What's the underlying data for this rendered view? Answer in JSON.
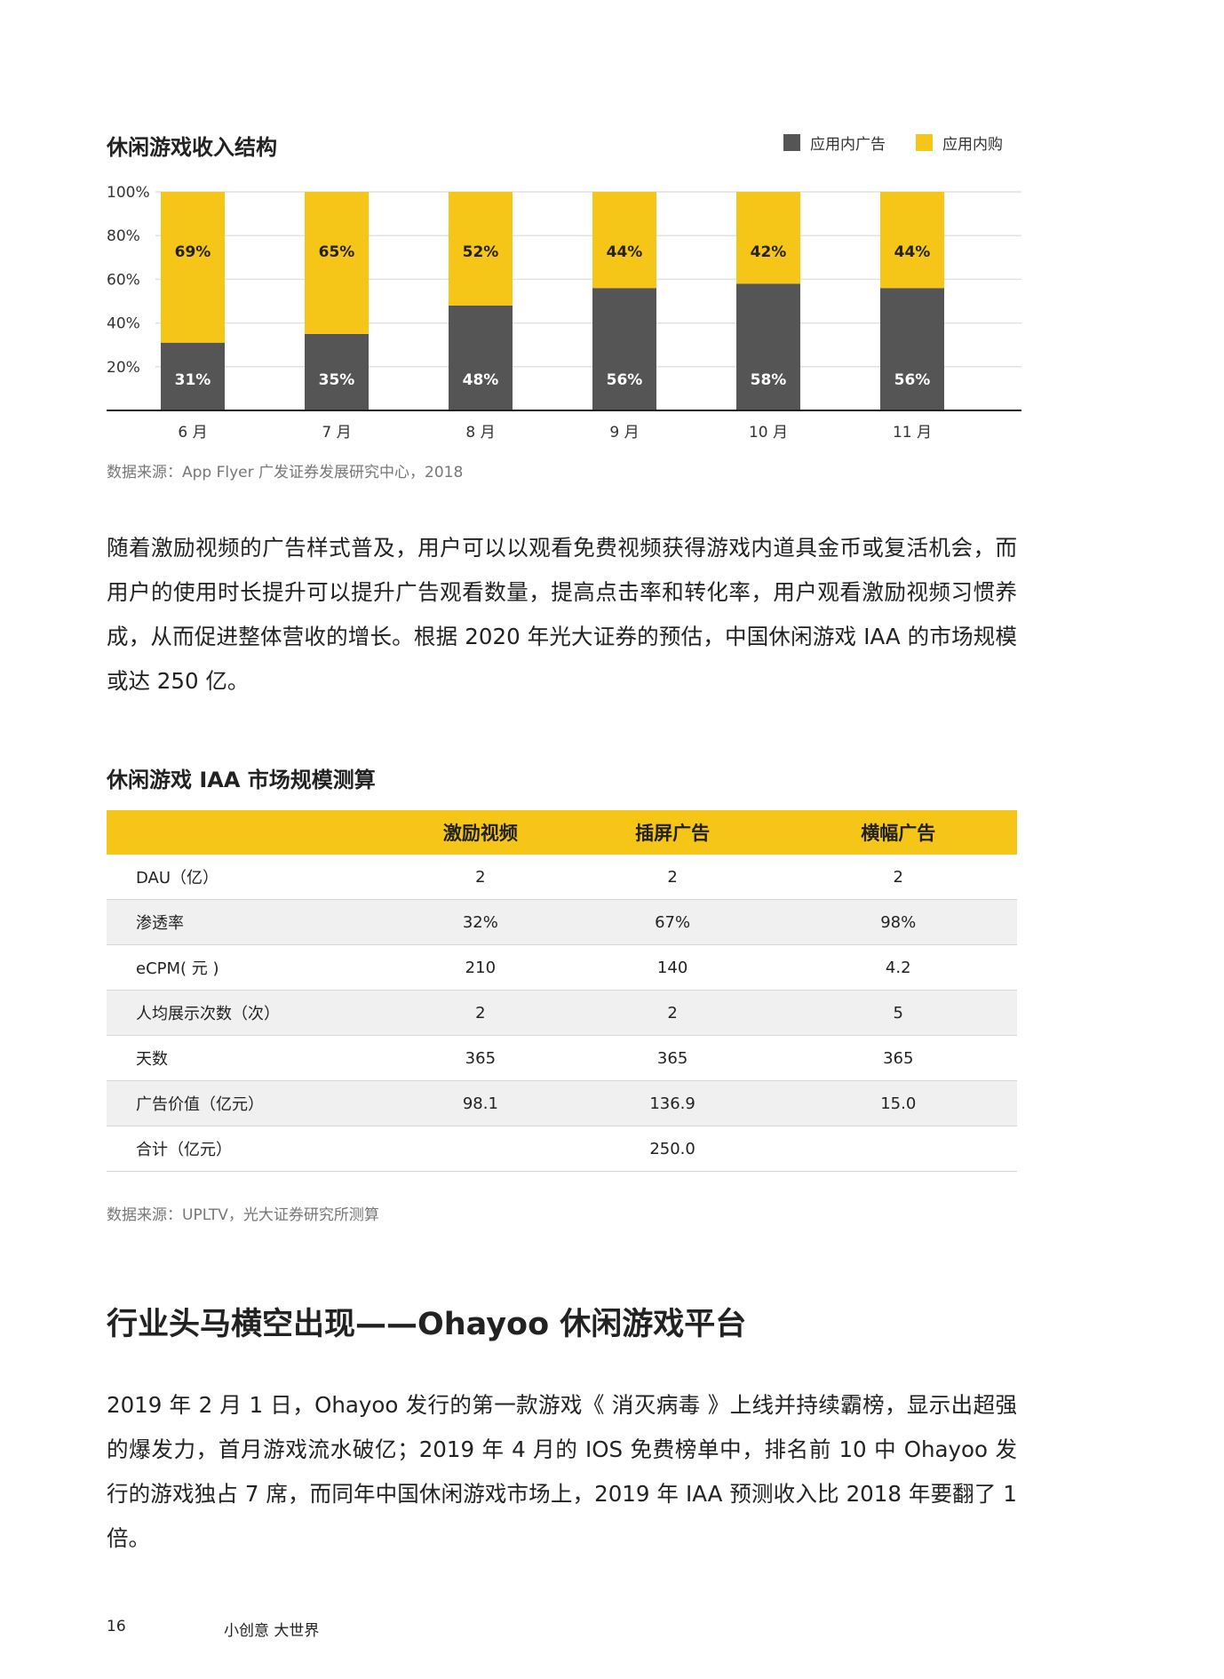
{
  "chart_section": {
    "title": "休闲游戏收入结构",
    "source": "数据来源：App Flyer 广发证券发展研究中心，2018"
  },
  "chart_data": {
    "type": "bar",
    "stacked": true,
    "categories": [
      "6 月",
      "7 月",
      "8 月",
      "9 月",
      "10 月",
      "11 月"
    ],
    "series": [
      {
        "name": "应用内广告",
        "values": [
          31,
          35,
          48,
          56,
          58,
          56
        ],
        "labels": [
          "31%",
          "35%",
          "48%",
          "56%",
          "58%",
          "56%"
        ],
        "color": "#555555"
      },
      {
        "name": "应用内购",
        "values": [
          69,
          65,
          52,
          44,
          42,
          44
        ],
        "labels": [
          "69%",
          "65%",
          "52%",
          "44%",
          "42%",
          "44%"
        ],
        "color": "#f5c518"
      }
    ],
    "ylim": [
      0,
      100
    ],
    "yticks": [
      "20%",
      "40%",
      "60%",
      "80%",
      "100%"
    ],
    "grid": true,
    "legend": "top-right"
  },
  "paragraph1": "随着激励视频的广告样式普及，用户可以以观看免费视频获得游戏内道具金币或复活机会，而用户的使用时长提升可以提升广告观看数量，提高点击率和转化率，用户观看激励视频习惯养成，从而促进整体营收的增长。根据 2020 年光大证券的预估，中国休闲游戏 IAA 的市场规模或达 250 亿。",
  "table": {
    "title": "休闲游戏 IAA 市场规模测算",
    "headers": [
      "",
      "激励视频",
      "插屏广告",
      "横幅广告"
    ],
    "rows": [
      [
        "DAU（亿）",
        "2",
        "2",
        "2"
      ],
      [
        "渗透率",
        "32%",
        "67%",
        "98%"
      ],
      [
        "eCPM( 元 )",
        "210",
        "140",
        "4.2"
      ],
      [
        "人均展示次数（次）",
        "2",
        "2",
        "5"
      ],
      [
        "天数",
        "365",
        "365",
        "365"
      ],
      [
        "广告价值（亿元）",
        "98.1",
        "136.9",
        "15.0"
      ],
      [
        "合计（亿元）",
        "",
        "250.0",
        ""
      ]
    ],
    "source": "数据来源：UPLTV，光大证券研究所测算"
  },
  "section": {
    "heading": "行业头马横空出现——Ohayoo 休闲游戏平台",
    "paragraph": "2019 年 2 月 1 日，Ohayoo 发行的第一款游戏《 消灭病毒 》上线并持续霸榜，显示出超强的爆发力，首月游戏流水破亿；2019 年 4 月的 IOS 免费榜单中，排名前 10 中 Ohayoo 发行的游戏独占 7 席，而同年中国休闲游戏市场上，2019 年 IAA 预测收入比 2018 年要翻了 1 倍。"
  },
  "footer": {
    "page_number": "16",
    "slogan": "小创意  大世界"
  }
}
